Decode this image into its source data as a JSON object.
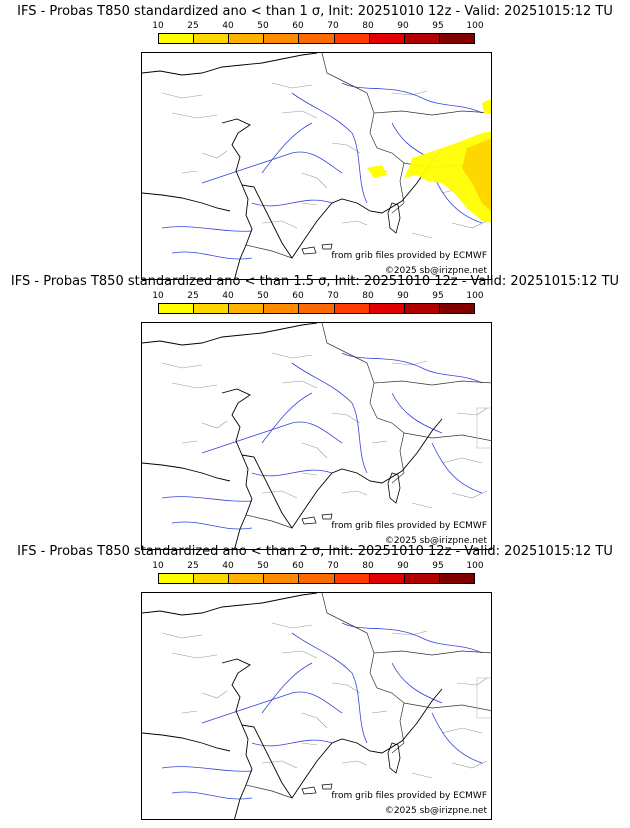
{
  "colorbar": {
    "ticks": [
      "10",
      "25",
      "40",
      "50",
      "60",
      "70",
      "80",
      "90",
      "95",
      "100"
    ],
    "colors": [
      "#ffff00",
      "#ffd700",
      "#ffb000",
      "#ff8c00",
      "#ff6a00",
      "#ff3c00",
      "#e00000",
      "#b00000",
      "#800000",
      "#500000"
    ]
  },
  "panels": [
    {
      "title": "IFS - Probas T850  standardized ano < than 1 σ, Init: 20251010 12z - Valid: 20251015:12 TU",
      "credit": "from grib files provided by ECMWF",
      "copyright": "©2025 sb@irizpne.net",
      "has_yellow": true
    },
    {
      "title": "IFS - Probas T850  standardized ano < than 1.5 σ, Init: 20251010 12z - Valid: 20251015:12 TU",
      "credit": "from grib files provided by ECMWF",
      "copyright": "©2025 sb@irizpne.net",
      "has_yellow": false
    },
    {
      "title": "IFS - Probas T850  standardized ano < than 2 σ, Init: 20251010 12z - Valid: 20251015:12 TU",
      "credit": "from grib files provided by ECMWF",
      "copyright": "©2025 sb@irizpne.net",
      "has_yellow": false
    }
  ]
}
